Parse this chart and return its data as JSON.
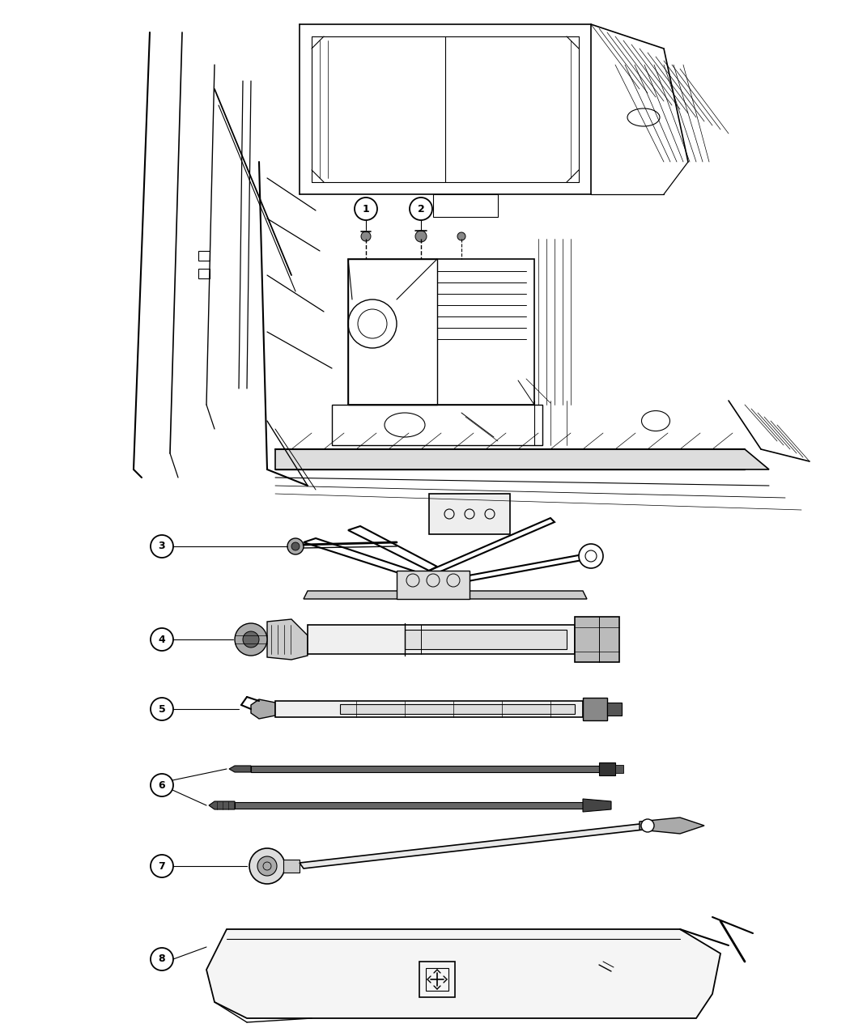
{
  "background_color": "#ffffff",
  "line_color": "#000000",
  "figure_width": 10.5,
  "figure_height": 12.75,
  "dpi": 100,
  "lw": 0.9
}
